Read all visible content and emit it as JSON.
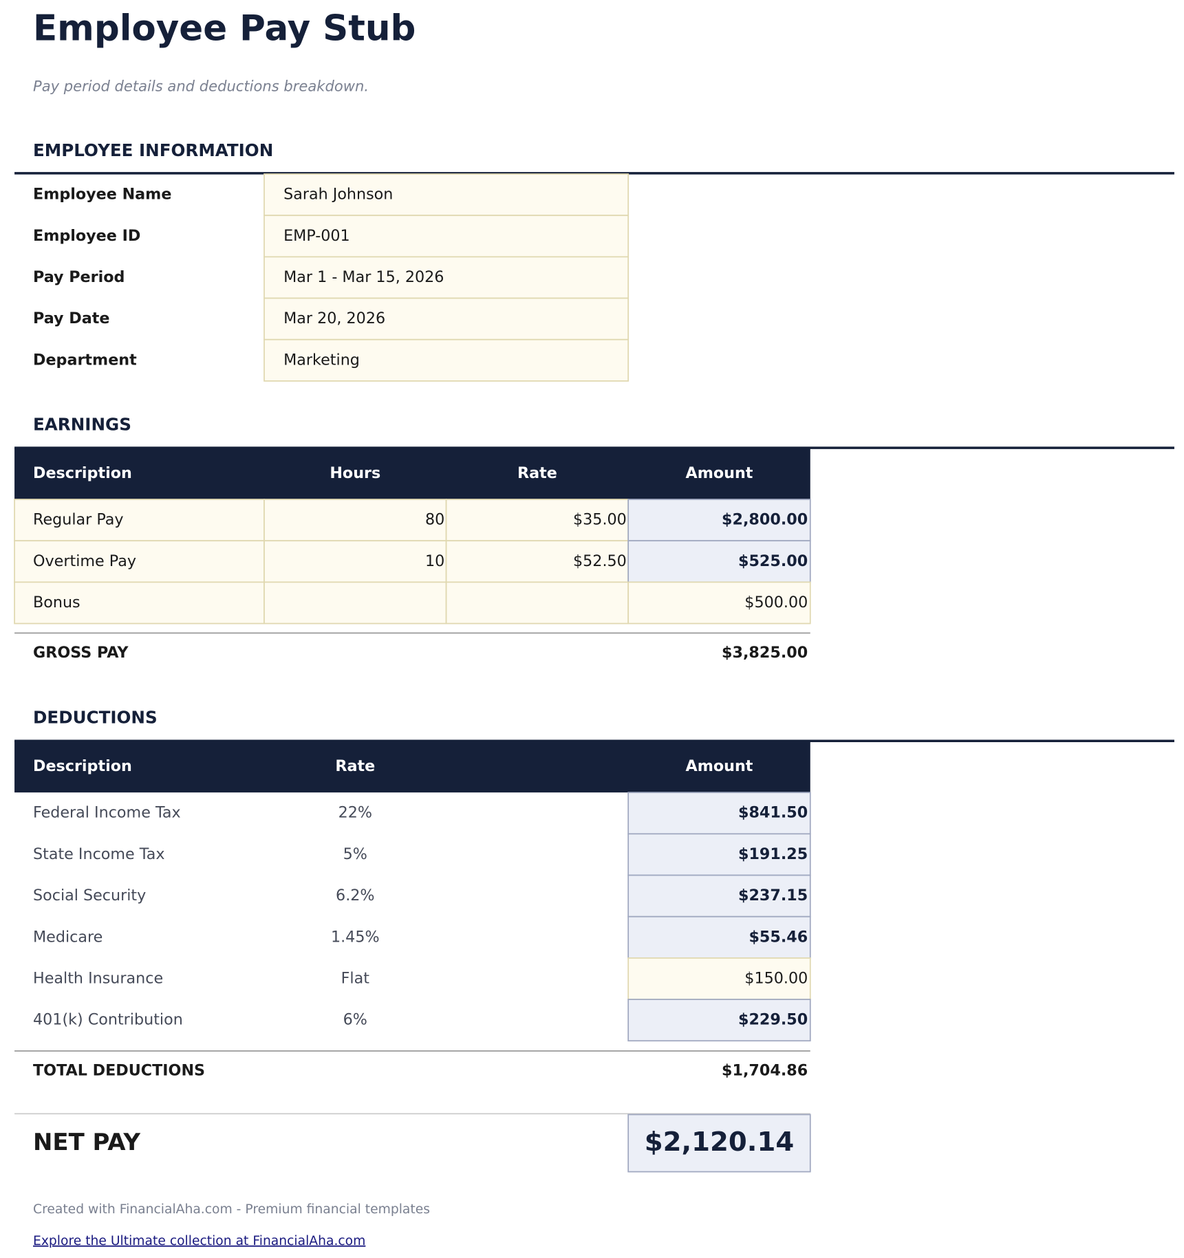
{
  "header": {
    "title": "Employee Pay Stub",
    "subtitle": "Pay period details and deductions breakdown."
  },
  "employee_info": {
    "heading": "EMPLOYEE INFORMATION",
    "rows": [
      {
        "label": "Employee Name",
        "value": "Sarah Johnson"
      },
      {
        "label": "Employee ID",
        "value": "EMP-001"
      },
      {
        "label": "Pay Period",
        "value": "Mar 1 - Mar 15, 2026"
      },
      {
        "label": "Pay Date",
        "value": "Mar 20, 2026"
      },
      {
        "label": "Department",
        "value": "Marketing"
      }
    ]
  },
  "earnings": {
    "heading": "EARNINGS",
    "columns": [
      "Description",
      "Hours",
      "Rate",
      "Amount"
    ],
    "rows": [
      {
        "description": "Regular Pay",
        "hours": "80",
        "rate": "$35.00",
        "amount": "$2,800.00",
        "calculated": true
      },
      {
        "description": "Overtime Pay",
        "hours": "10",
        "rate": "$52.50",
        "amount": "$525.00",
        "calculated": true
      },
      {
        "description": "Bonus",
        "amount": "$500.00",
        "calculated": false
      }
    ],
    "total": {
      "label": "GROSS PAY",
      "amount": "$3,825.00"
    }
  },
  "deductions": {
    "heading": "DEDUCTIONS",
    "columns": [
      "Description",
      "Rate",
      "Amount"
    ],
    "rows": [
      {
        "description": "Federal Income Tax",
        "rate": "22%",
        "amount": "$841.50",
        "calculated": true
      },
      {
        "description": "State Income Tax",
        "rate": "5%",
        "amount": "$191.25",
        "calculated": true
      },
      {
        "description": "Social Security",
        "rate": "6.2%",
        "amount": "$237.15",
        "calculated": true
      },
      {
        "description": "Medicare",
        "rate": "1.45%",
        "amount": "$55.46",
        "calculated": true
      },
      {
        "description": "Health Insurance",
        "rate": "Flat",
        "amount": "$150.00",
        "calculated": false
      },
      {
        "description": "401(k) Contribution",
        "rate": "6%",
        "amount": "$229.50",
        "calculated": true
      }
    ],
    "total": {
      "label": "TOTAL DEDUCTIONS",
      "amount": "$1,704.86"
    }
  },
  "net_pay": {
    "label": "NET PAY",
    "amount": "$2,120.14"
  },
  "footer": {
    "credit": "Created with FinancialAha.com - Premium financial templates",
    "link": "Explore the Ultimate collection at FinancialAha.com"
  }
}
